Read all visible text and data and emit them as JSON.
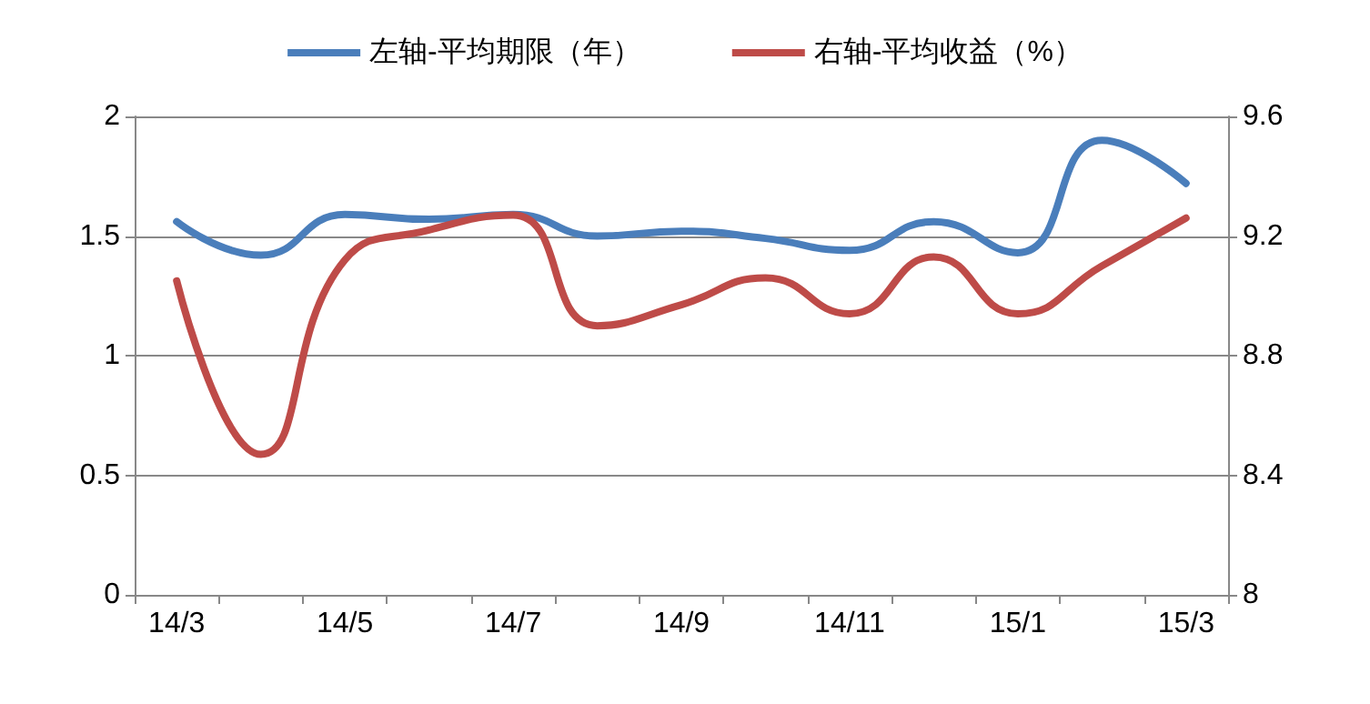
{
  "chart_data": {
    "type": "line",
    "categories": [
      "14/3",
      null,
      "14/5",
      null,
      "14/7",
      null,
      "14/9",
      null,
      "14/11",
      null,
      "15/1",
      null,
      "15/3"
    ],
    "series": [
      {
        "name": "左轴-平均期限（年）",
        "color": "#4a7ebb",
        "values": [
          1.56,
          1.42,
          1.59,
          1.57,
          1.59,
          1.5,
          1.52,
          1.49,
          1.44,
          1.56,
          1.43,
          1.9,
          1.72
        ]
      },
      {
        "name": "右轴-平均收益（%）",
        "color": "#be4b48",
        "axis": "y2",
        "values": [
          9.05,
          8.47,
          9.12,
          9.22,
          9.27,
          8.9,
          8.97,
          9.06,
          8.94,
          9.13,
          8.94,
          9.1,
          9.26
        ]
      }
    ],
    "ylim": [
      0,
      2
    ],
    "yticks": [
      0,
      0.5,
      1,
      1.5,
      2
    ],
    "y2lim": [
      8,
      9.6
    ],
    "y2ticks": [
      8,
      8.4,
      8.8,
      9.2,
      9.6
    ],
    "grid": "y",
    "legend": "top",
    "marker": "none",
    "line_style": "solid"
  }
}
